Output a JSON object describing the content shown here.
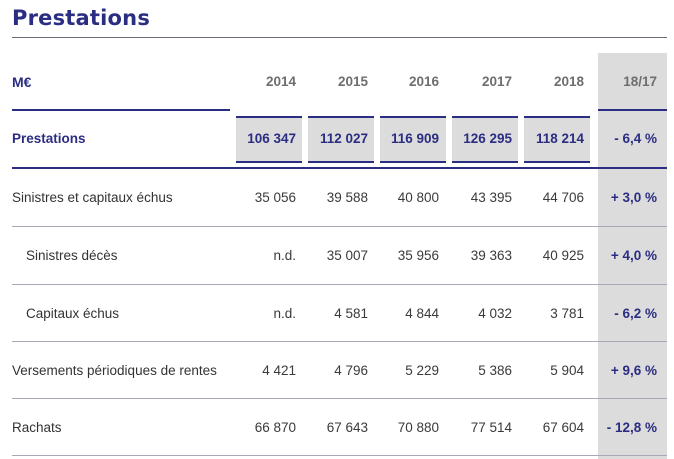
{
  "title": "Prestations",
  "table": {
    "unit": "M€",
    "years": [
      "2014",
      "2015",
      "2016",
      "2017",
      "2018"
    ],
    "delta_header": "18/17",
    "rows": [
      {
        "label": "Prestations",
        "values": [
          "106 347",
          "112 027",
          "116 909",
          "126 295",
          "118 214"
        ],
        "delta": "- 6,4 %",
        "highlight": true
      },
      {
        "label": "Sinistres et capitaux échus",
        "values": [
          "35 056",
          "39 588",
          "40 800",
          "43 395",
          "44 706"
        ],
        "delta": "+ 3,0 %"
      },
      {
        "label": "Sinistres décès",
        "values": [
          "n.d.",
          "35 007",
          "35 956",
          "39 363",
          "40 925"
        ],
        "delta": "+ 4,0 %",
        "indent": true
      },
      {
        "label": "Capitaux échus",
        "values": [
          "n.d.",
          "4 581",
          "4 844",
          "4 032",
          "3 781"
        ],
        "delta": "- 6,2 %",
        "indent": true
      },
      {
        "label": "Versements périodiques de rentes",
        "values": [
          "4 421",
          "4 796",
          "5 229",
          "5 386",
          "5 904"
        ],
        "delta": "+ 9,6 %"
      },
      {
        "label": "Rachats",
        "values": [
          "66 870",
          "67 643",
          "70 880",
          "77 514",
          "67 604"
        ],
        "delta": "- 12,8 %"
      }
    ]
  },
  "colors": {
    "accent": "#2b2d82",
    "shade": "#dcdcdc"
  }
}
